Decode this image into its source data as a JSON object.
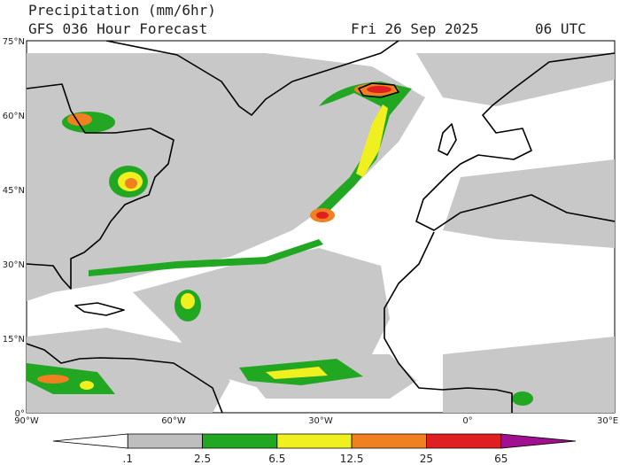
{
  "header": {
    "title": "Precipitation (mm/6hr)",
    "subtitle": "GFS 036 Hour Forecast",
    "date": "Fri 26 Sep 2025",
    "time": "06 UTC"
  },
  "map": {
    "lat_labels": [
      "75°N",
      "60°N",
      "45°N",
      "30°N",
      "15°N",
      "0°"
    ],
    "lon_labels": [
      "90°W",
      "60°W",
      "30°W",
      "0°",
      "30°E"
    ]
  },
  "legend": {
    "labels": [
      ".1",
      "2.5",
      "6.5",
      "12.5",
      "25",
      "65"
    ],
    "colors": [
      "#ffffff",
      "#bebebe",
      "#22a722",
      "#f0f020",
      "#f08020",
      "#e02020",
      "#a01090"
    ]
  }
}
